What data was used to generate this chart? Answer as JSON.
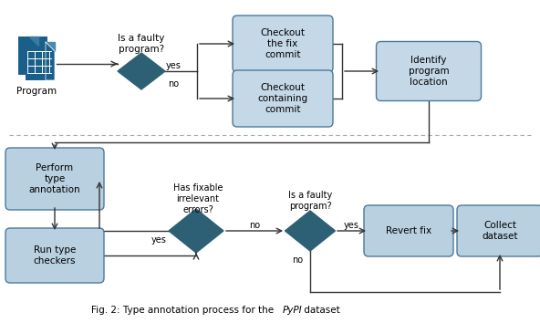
{
  "fig_width": 5.92,
  "fig_height": 3.54,
  "dpi": 100,
  "bg_color": "#ffffff",
  "box_fill_top": "#c5d8e8",
  "box_fill_bot": "#b8d0e0",
  "box_edge": "#4a7a9b",
  "diamond_fill": "#2d5f75",
  "diamond_edge": "#2d5f75",
  "separator_color": "#aaaaaa",
  "arrow_color": "#333333",
  "caption_main": "Fig. 2: Type annotation process for the ",
  "caption_italic": "PyPI",
  "caption_end": " dataset"
}
